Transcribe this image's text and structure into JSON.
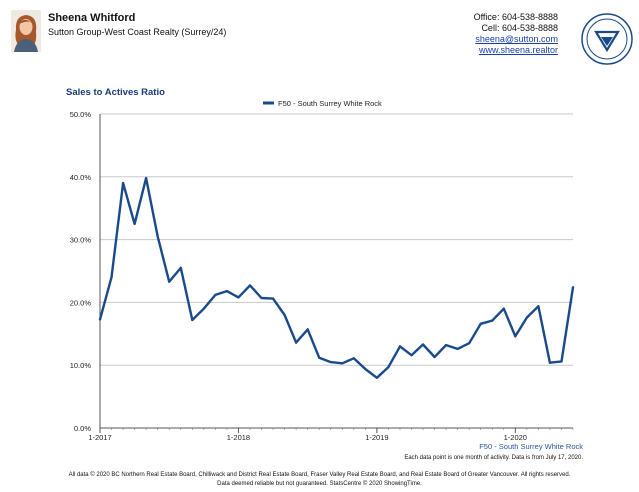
{
  "agent": {
    "name": "Sheena Whitford",
    "company": "Sutton Group-West Coast Realty (Surrey/24)",
    "office": "Office: 604-538-8888",
    "cell": "Cell: 604-538-8888",
    "email": "sheena@sutton.com",
    "website": "www.sheena.realtor"
  },
  "colors": {
    "series": "#1a4a8a",
    "title": "#1a3a7a",
    "grid": "#c8c8c8"
  },
  "chart_data": {
    "type": "line",
    "title": "Sales to Actives Ratio",
    "legend_position": "top-center",
    "grid": true,
    "ylim": [
      0,
      50
    ],
    "y_ticks": [
      "0.0%",
      "10.0%",
      "20.0%",
      "30.0%",
      "40.0%",
      "50.0%"
    ],
    "x_tick_labels": [
      "1-2017",
      "1-2018",
      "1-2019",
      "1-2020"
    ],
    "bottom_series_label": "F50 - South Surrey White Rock",
    "series": [
      {
        "name": "F50 - South Surrey White Rock",
        "start": "2017-01",
        "values": [
          17.3,
          24.0,
          39.0,
          32.5,
          39.8,
          30.5,
          23.3,
          25.5,
          17.2,
          19.0,
          21.2,
          21.8,
          20.8,
          22.7,
          20.7,
          20.6,
          18.0,
          13.6,
          15.7,
          11.2,
          10.5,
          10.3,
          11.1,
          9.4,
          8.0,
          9.7,
          13.0,
          11.6,
          13.3,
          11.3,
          13.2,
          12.6,
          13.5,
          16.6,
          17.1,
          19.0,
          14.6,
          17.6,
          19.4,
          10.4,
          10.6,
          22.4
        ]
      }
    ]
  },
  "footer": {
    "note": "Each data point is one month of activity. Data is from July 17, 2020.",
    "line1": "All data © 2020 BC Northern Real Estate Board, Chilliwack and District Real Estate Board, Fraser Valley Real Estate Board, and Real Estate Board of Greater Vancouver. All rights reserved.",
    "line2": "Data deemed reliable but not guaranteed. StatsCentre © 2020 ShowingTime."
  }
}
